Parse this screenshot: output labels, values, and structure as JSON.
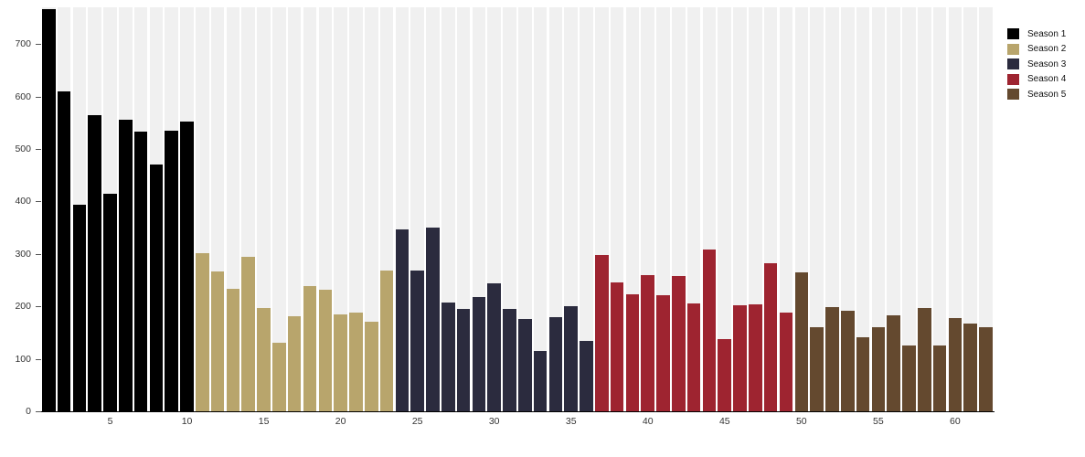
{
  "chart_data": {
    "type": "bar",
    "title": "",
    "xlabel": "",
    "ylabel": "",
    "x_description": "episode number 1-62, ticks every 5",
    "series": [
      {
        "name": "Season 1",
        "color": "#000000",
        "first_episode": 1,
        "values": [
          766,
          610,
          393,
          564,
          415,
          556,
          533,
          471,
          535,
          552
        ]
      },
      {
        "name": "Season 2",
        "color": "#b8a56c",
        "first_episode": 11,
        "values": [
          302,
          267,
          234,
          295,
          197,
          130,
          182,
          238,
          232,
          184,
          188,
          171,
          269
        ]
      },
      {
        "name": "Season 3",
        "color": "#2b2b3e",
        "first_episode": 24,
        "values": [
          347,
          268,
          350,
          208,
          195,
          218,
          244,
          196,
          176,
          115,
          180,
          200,
          135
        ]
      },
      {
        "name": "Season 4",
        "color": "#9e2430",
        "first_episode": 37,
        "values": [
          298,
          245,
          223,
          260,
          222,
          257,
          206,
          309,
          138,
          202,
          203,
          282,
          188
        ]
      },
      {
        "name": "Season 5",
        "color": "#64492f",
        "first_episode": 50,
        "values": [
          264,
          161,
          198,
          192,
          141,
          161,
          183,
          125,
          197,
          125,
          177,
          167,
          160
        ]
      }
    ],
    "xticks": [
      5,
      10,
      15,
      20,
      25,
      30,
      35,
      40,
      45,
      50,
      55,
      60
    ],
    "yticks": [
      0,
      100,
      200,
      300,
      400,
      500,
      600,
      700
    ],
    "ylim": [
      0,
      770
    ],
    "grid": false,
    "legend_position": "top-right",
    "legend_entries": [
      "Season 1",
      "Season 2",
      "Season 3",
      "Season 4",
      "Season 5"
    ],
    "background_column_color": "#f0f0f0",
    "plot_background": "#ffffff",
    "axis_color": "#000000",
    "tick_label_color": "#333333"
  }
}
